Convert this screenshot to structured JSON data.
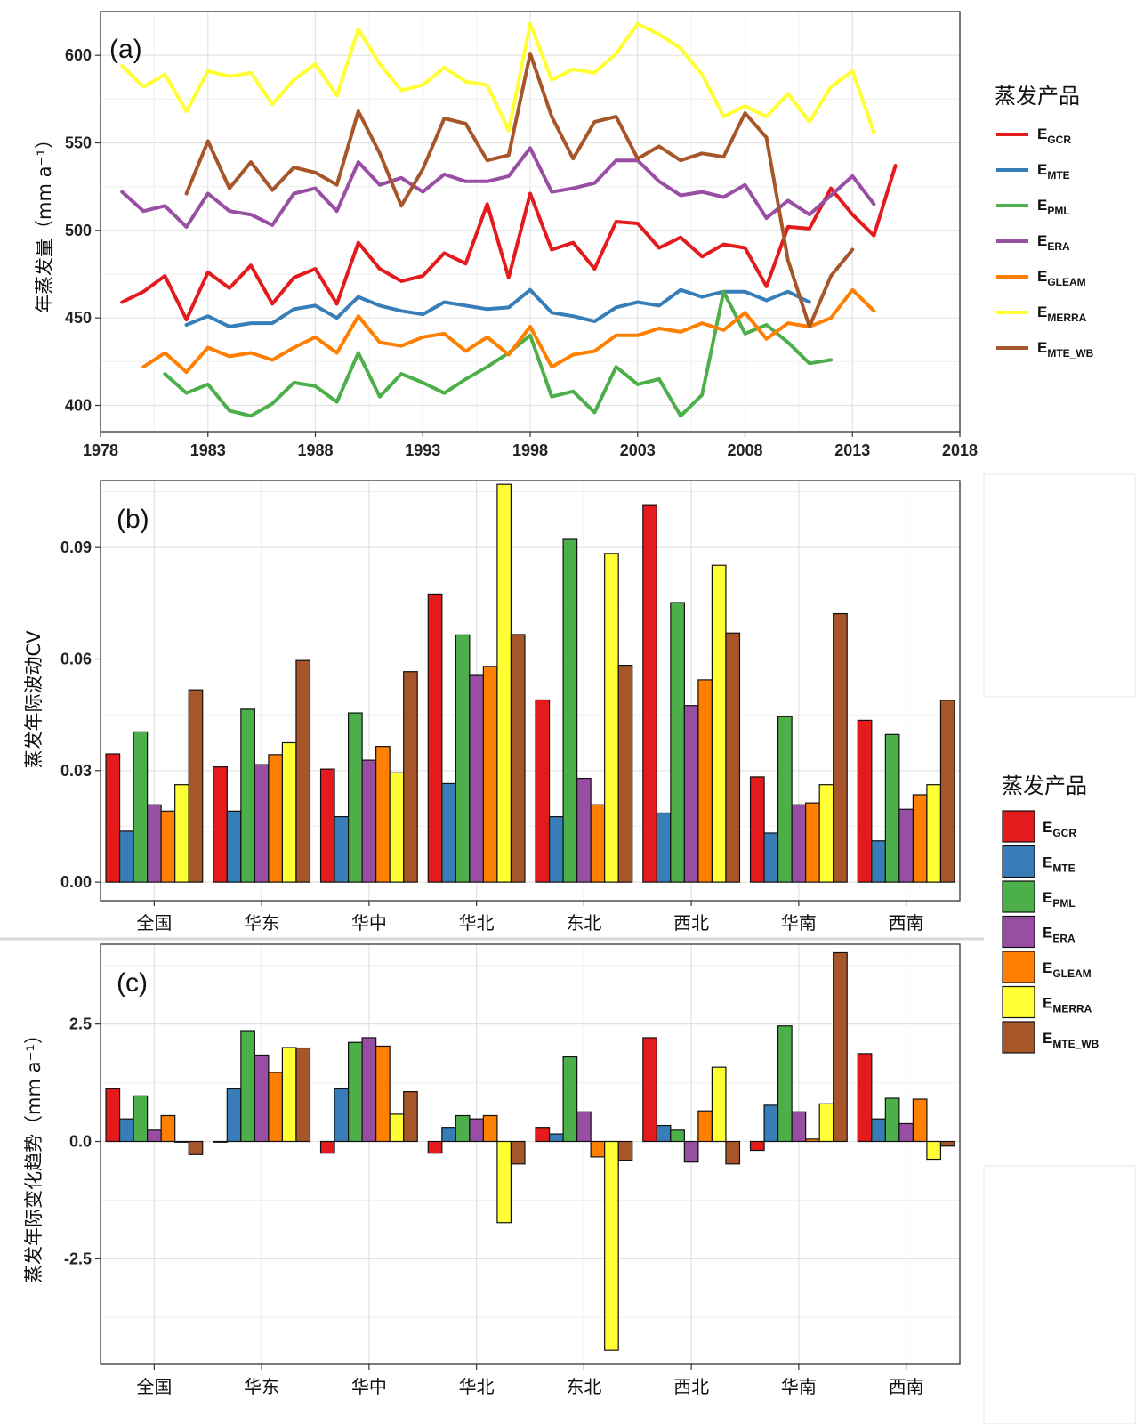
{
  "colors": {
    "E_GCR": "#e41a1c",
    "E_MTE": "#377eb8",
    "E_PML": "#4daf4a",
    "E_ERA": "#984ea3",
    "E_GLEAM": "#ff7f00",
    "E_MERRA": "#ffff33",
    "E_MTE_WB": "#a65628"
  },
  "legend": {
    "title": "蒸发产品",
    "items": [
      {
        "key": "E_GCR",
        "main": "E",
        "sub": "GCR"
      },
      {
        "key": "E_MTE",
        "main": "E",
        "sub": "MTE"
      },
      {
        "key": "E_PML",
        "main": "E",
        "sub": "PML"
      },
      {
        "key": "E_ERA",
        "main": "E",
        "sub": "ERA"
      },
      {
        "key": "E_GLEAM",
        "main": "E",
        "sub": "GLEAM"
      },
      {
        "key": "E_MERRA",
        "main": "E",
        "sub": "MERRA"
      },
      {
        "key": "E_MTE_WB",
        "main": "E",
        "sub": "MTE_WB"
      }
    ]
  },
  "chart_data": [
    {
      "panel": "(a)",
      "type": "line",
      "ylabel": "年蒸发量（mm a⁻¹）",
      "xlim": [
        1978,
        2018
      ],
      "ylim": [
        385,
        625
      ],
      "xticks": [
        1978,
        1983,
        1988,
        1993,
        1998,
        2003,
        2008,
        2013,
        2018
      ],
      "yticks": [
        400,
        450,
        500,
        550,
        600
      ],
      "grid": true,
      "legend_position": "right",
      "series": [
        {
          "key": "E_GCR",
          "start": 1979,
          "values": [
            459,
            465,
            474,
            449,
            476,
            467,
            480,
            458,
            473,
            478,
            458,
            493,
            478,
            471,
            474,
            487,
            481,
            515,
            473,
            521,
            489,
            493,
            478,
            505,
            504,
            490,
            496,
            485,
            492,
            490,
            468,
            502,
            501,
            524,
            509,
            497,
            537
          ]
        },
        {
          "key": "E_MTE",
          "start": 1982,
          "values": [
            446,
            451,
            445,
            447,
            447,
            455,
            457,
            450,
            462,
            457,
            454,
            452,
            459,
            457,
            455,
            456,
            466,
            453,
            451,
            448,
            456,
            459,
            457,
            466,
            462,
            465,
            465,
            460,
            465,
            459
          ]
        },
        {
          "key": "E_PML",
          "start": 1981,
          "values": [
            418,
            407,
            412,
            397,
            394,
            401,
            413,
            411,
            402,
            430,
            405,
            418,
            413,
            407,
            415,
            422,
            430,
            440,
            405,
            408,
            396,
            422,
            412,
            415,
            394,
            406,
            465,
            441,
            446,
            436,
            424,
            426
          ]
        },
        {
          "key": "E_ERA",
          "start": 1979,
          "values": [
            522,
            511,
            514,
            502,
            521,
            511,
            509,
            503,
            521,
            524,
            511,
            539,
            526,
            530,
            522,
            532,
            528,
            528,
            531,
            547,
            522,
            524,
            527,
            540,
            540,
            528,
            520,
            522,
            519,
            526,
            507,
            517,
            509,
            520,
            531,
            515
          ]
        },
        {
          "key": "E_GLEAM",
          "start": 1980,
          "values": [
            422,
            430,
            419,
            433,
            428,
            430,
            426,
            433,
            439,
            430,
            451,
            436,
            434,
            439,
            441,
            431,
            439,
            429,
            445,
            422,
            429,
            431,
            440,
            440,
            444,
            442,
            447,
            443,
            453,
            438,
            447,
            445,
            450,
            466,
            454
          ]
        },
        {
          "key": "E_MERRA",
          "start": 1979,
          "values": [
            594,
            582,
            589,
            568,
            591,
            588,
            590,
            572,
            586,
            595,
            577,
            615,
            595,
            580,
            583,
            593,
            585,
            583,
            557,
            618,
            586,
            592,
            590,
            601,
            618,
            612,
            604,
            589,
            565,
            571,
            565,
            578,
            562,
            582,
            591,
            556
          ]
        },
        {
          "key": "E_MTE_WB",
          "start": 1982,
          "values": [
            521,
            551,
            524,
            539,
            523,
            536,
            533,
            526,
            568,
            544,
            514,
            535,
            564,
            561,
            540,
            543,
            601,
            565,
            541,
            562,
            565,
            541,
            548,
            540,
            544,
            542,
            567,
            553,
            483,
            445,
            474,
            489
          ]
        }
      ]
    },
    {
      "panel": "(b)",
      "type": "bar",
      "ylabel": "蒸发年际波动CV",
      "categories": [
        "全国",
        "华东",
        "华中",
        "华北",
        "东北",
        "西北",
        "华南",
        "西南"
      ],
      "ylim": [
        -0.005,
        0.108
      ],
      "yticks": [
        "0.00",
        "0.03",
        "0.06",
        "0.09"
      ],
      "grid": true,
      "legend_position": "right",
      "series": [
        {
          "key": "E_GCR",
          "values": [
            0.0345,
            0.031,
            0.0304,
            0.0775,
            0.049,
            0.1015,
            0.0283,
            0.0435
          ]
        },
        {
          "key": "E_MTE",
          "values": [
            0.0137,
            0.0191,
            0.0176,
            0.0265,
            0.0176,
            0.0186,
            0.0132,
            0.0111
          ]
        },
        {
          "key": "E_PML",
          "values": [
            0.0404,
            0.0465,
            0.0455,
            0.0665,
            0.0922,
            0.0752,
            0.0445,
            0.0397
          ]
        },
        {
          "key": "E_ERA",
          "values": [
            0.0208,
            0.0316,
            0.0328,
            0.0558,
            0.0279,
            0.0475,
            0.0208,
            0.0196
          ]
        },
        {
          "key": "E_GLEAM",
          "values": [
            0.0191,
            0.0343,
            0.0365,
            0.058,
            0.0208,
            0.0544,
            0.0213,
            0.0235
          ]
        },
        {
          "key": "E_MERRA",
          "values": [
            0.0262,
            0.0375,
            0.0294,
            0.107,
            0.0884,
            0.0852,
            0.0262,
            0.0262
          ]
        },
        {
          "key": "E_MTE_WB",
          "values": [
            0.0517,
            0.0596,
            0.0566,
            0.0666,
            0.0583,
            0.067,
            0.0722,
            0.0489
          ]
        }
      ]
    },
    {
      "panel": "(c)",
      "type": "bar",
      "ylabel": "蒸发年际变化趋势（mm a⁻¹）",
      "categories": [
        "全国",
        "华东",
        "华中",
        "华北",
        "东北",
        "西北",
        "华南",
        "西南"
      ],
      "ylim": [
        -4.75,
        4.2
      ],
      "yticks": [
        "-2.5",
        "0.0",
        "2.5"
      ],
      "grid": true,
      "series": [
        {
          "key": "E_GCR",
          "values": [
            1.12,
            0.0,
            -0.25,
            -0.25,
            0.3,
            2.21,
            -0.19,
            1.87
          ]
        },
        {
          "key": "E_MTE",
          "values": [
            0.48,
            1.12,
            1.12,
            0.3,
            0.16,
            0.34,
            0.77,
            0.48
          ]
        },
        {
          "key": "E_PML",
          "values": [
            0.97,
            2.36,
            2.11,
            0.55,
            1.8,
            0.24,
            2.46,
            0.92
          ]
        },
        {
          "key": "E_ERA",
          "values": [
            0.24,
            1.84,
            2.21,
            0.48,
            0.63,
            -0.44,
            0.63,
            0.38
          ]
        },
        {
          "key": "E_GLEAM",
          "values": [
            0.55,
            1.47,
            2.03,
            0.55,
            -0.33,
            0.65,
            0.05,
            0.9
          ]
        },
        {
          "key": "E_MERRA",
          "values": [
            0.0,
            2.0,
            0.58,
            -1.73,
            -4.45,
            1.58,
            0.8,
            -0.38
          ]
        },
        {
          "key": "E_MTE_WB",
          "values": [
            -0.28,
            1.99,
            1.06,
            -0.48,
            -0.4,
            -0.48,
            4.02,
            -0.1
          ]
        }
      ]
    }
  ]
}
